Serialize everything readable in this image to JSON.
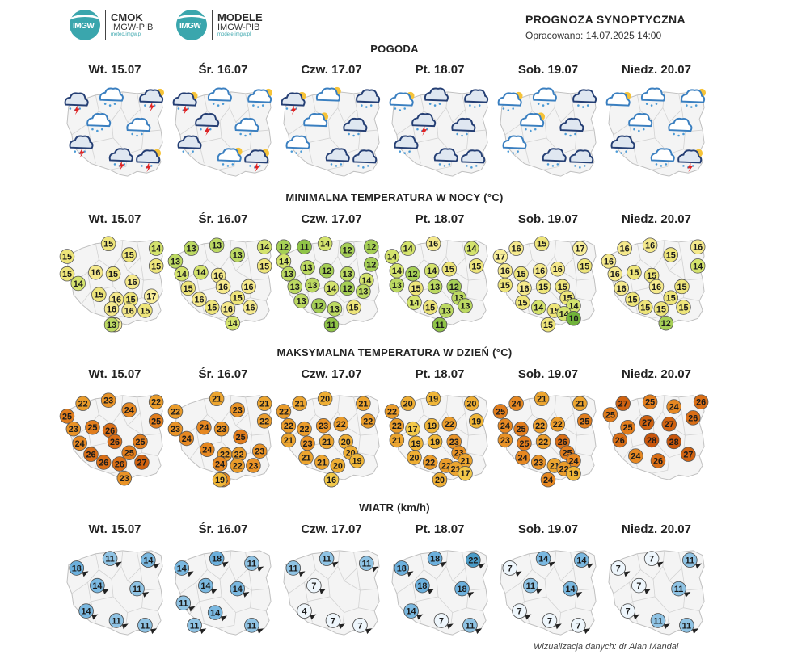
{
  "header": {
    "logo1": {
      "name": "CMOK",
      "sub": "IMGW-PIB",
      "url": "meteo.imgw.pl",
      "mark": "IMGW"
    },
    "logo2": {
      "name": "MODELE",
      "sub": "IMGW-PIB",
      "url": "modele.imgw.pl",
      "mark": "IMGW"
    },
    "title": "PROGNOZA SYNOPTYCZNA",
    "prepared": "Opracowano: 14.07.2025 14:00"
  },
  "sections": [
    {
      "title": "POGODA",
      "days": [
        "Wt. 15.07",
        "Śr. 16.07",
        "Czw. 17.07",
        "Pt. 18.07",
        "Sob. 19.07",
        "Niedz. 20.07"
      ]
    },
    {
      "title": "MINIMALNA TEMPERATURA W NOCY (°C)",
      "days": [
        "Wt. 15.07",
        "Śr. 16.07",
        "Czw. 17.07",
        "Pt. 18.07",
        "Sob. 19.07",
        "Niedz. 20.07"
      ]
    },
    {
      "title": "MAKSYMALNA TEMPERATURA W DZIEŃ (°C)",
      "days": [
        "Wt. 15.07",
        "Śr. 16.07",
        "Czw. 17.07",
        "Pt. 18.07",
        "Sob. 19.07",
        "Niedz. 20.07"
      ]
    },
    {
      "title": "WIATR (km/h)",
      "days": [
        "Wt. 15.07",
        "Śr. 16.07",
        "Czw. 17.07",
        "Pt. 18.07",
        "Sob. 19.07",
        "Niedz. 20.07"
      ]
    }
  ],
  "weather_icons": [
    [
      "storm-cloud",
      "rain-cloud",
      "storm-sun-cloud",
      "rain-cloud",
      "rain-cloud",
      "storm-cloud",
      "storm-cloud",
      "storm-sun-cloud"
    ],
    [
      "storm-sun-cloud",
      "rain-cloud",
      "rain-sun-cloud",
      "storm-cloud",
      "rain-cloud",
      "heavy-rain-cloud",
      "rain-sun-cloud",
      "storm-sun-cloud"
    ],
    [
      "storm-sun-cloud",
      "sun-cloud",
      "heavy-rain-cloud",
      "sun-cloud",
      "heavy-rain-cloud",
      "rain-cloud",
      "heavy-rain-cloud",
      "heavy-rain-cloud"
    ],
    [
      "rain-sun-cloud",
      "heavy-rain-cloud",
      "heavy-rain-cloud",
      "storm-cloud",
      "heavy-rain-cloud",
      "heavy-rain-cloud",
      "heavy-rain-cloud",
      "heavy-rain-cloud"
    ],
    [
      "rain-sun-cloud",
      "rain-cloud",
      "heavy-rain-cloud",
      "rain-sun-cloud",
      "heavy-rain-cloud",
      "rain-cloud",
      "heavy-rain-cloud",
      "heavy-rain-cloud"
    ],
    [
      "sun-cloud",
      "rain-cloud",
      "rain-sun-cloud",
      "rain-cloud",
      "rain-cloud",
      "heavy-rain-cloud",
      "rain-cloud",
      "storm-sun-cloud"
    ]
  ],
  "min_temp": [
    [
      15,
      15,
      14,
      15,
      15,
      15,
      14,
      16,
      15,
      16,
      15,
      16,
      15,
      17,
      16,
      16,
      15,
      17,
      13
    ],
    [
      13,
      13,
      13,
      14,
      13,
      15,
      14,
      14,
      16,
      15,
      16,
      16,
      15,
      16,
      15,
      16,
      16,
      14
    ],
    [
      12,
      11,
      14,
      12,
      12,
      14,
      12,
      13,
      13,
      12,
      13,
      14,
      13,
      13,
      14,
      12,
      13,
      13,
      12,
      13,
      15,
      11
    ],
    [
      14,
      14,
      16,
      14,
      14,
      15,
      12,
      14,
      15,
      12,
      13,
      15,
      13,
      13,
      14,
      15,
      13,
      13,
      13,
      11
    ],
    [
      17,
      16,
      15,
      17,
      16,
      15,
      15,
      16,
      16,
      15,
      15,
      16,
      15,
      15,
      15,
      14,
      15,
      14,
      15,
      14,
      10
    ],
    [
      16,
      16,
      15,
      16,
      16,
      14,
      16,
      15,
      15,
      16,
      16,
      15,
      15,
      15,
      15,
      15,
      15,
      12
    ]
  ],
  "max_temp": [
    [
      22,
      23,
      24,
      22,
      25,
      25,
      23,
      25,
      26,
      24,
      26,
      25,
      25,
      26,
      26,
      26,
      27,
      23
    ],
    [
      22,
      21,
      21,
      23,
      23,
      22,
      24,
      24,
      23,
      25,
      24,
      22,
      22,
      23,
      24,
      22,
      23,
      24,
      19
    ],
    [
      22,
      21,
      20,
      21,
      22,
      22,
      22,
      23,
      22,
      20,
      21,
      23,
      21,
      20,
      21,
      21,
      20,
      19,
      18,
      16
    ],
    [
      22,
      20,
      19,
      20,
      22,
      19,
      17,
      19,
      22,
      23,
      21,
      19,
      19,
      23,
      20,
      22,
      22,
      21,
      20,
      21,
      17
    ],
    [
      25,
      24,
      21,
      21,
      24,
      25,
      25,
      22,
      22,
      26,
      23,
      25,
      22,
      25,
      24,
      23,
      21,
      24,
      24,
      22,
      19
    ],
    [
      27,
      25,
      24,
      26,
      25,
      26,
      25,
      27,
      27,
      26,
      28,
      28,
      27,
      24,
      26
    ]
  ],
  "wind": [
    [
      18,
      11,
      14,
      14,
      11,
      14,
      11,
      11
    ],
    [
      14,
      18,
      11,
      14,
      14,
      11,
      14,
      11,
      11
    ],
    [
      11,
      11,
      11,
      7,
      4,
      7,
      7
    ],
    [
      18,
      18,
      22,
      18,
      18,
      14,
      7,
      11
    ],
    [
      7,
      14,
      14,
      11,
      14,
      7,
      7,
      7
    ],
    [
      7,
      7,
      11,
      7,
      11,
      7,
      11,
      11
    ]
  ],
  "colors": {
    "min_temp": {
      "10": "#71b33a",
      "11": "#8fc447",
      "12": "#a6cf56",
      "13": "#bcd962",
      "14": "#d4e36d",
      "15": "#eee57a",
      "16": "#f5e98c",
      "17": "#f8ee9a"
    },
    "max_temp": {
      "16": "#f2c84a",
      "17": "#f2c84a",
      "18": "#f3c348",
      "19": "#f0b638",
      "20": "#eeae34",
      "21": "#eca530",
      "22": "#ea9c2b",
      "23": "#e99327",
      "24": "#e68822",
      "25": "#e17d1d",
      "26": "#d96e16",
      "27": "#d06210",
      "28": "#c9560c"
    },
    "wind": {
      "4": "#f0f7fc",
      "7": "#eef6fc",
      "11": "#8fc3e4",
      "14": "#7ab8e0",
      "18": "#6cb0dd",
      "22": "#4b9cc8"
    }
  },
  "footer": "Wizualizacja danych: dr Alan Mandal"
}
